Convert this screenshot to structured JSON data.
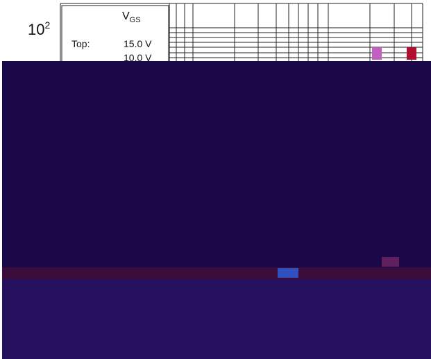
{
  "axis_label": {
    "base": "10",
    "exponent": "2"
  },
  "legend": {
    "title": "V",
    "title_subscript": "GS",
    "rows": [
      {
        "label": "Top:",
        "value": "15.0 V"
      },
      {
        "value": "10.0 V"
      }
    ]
  }
}
